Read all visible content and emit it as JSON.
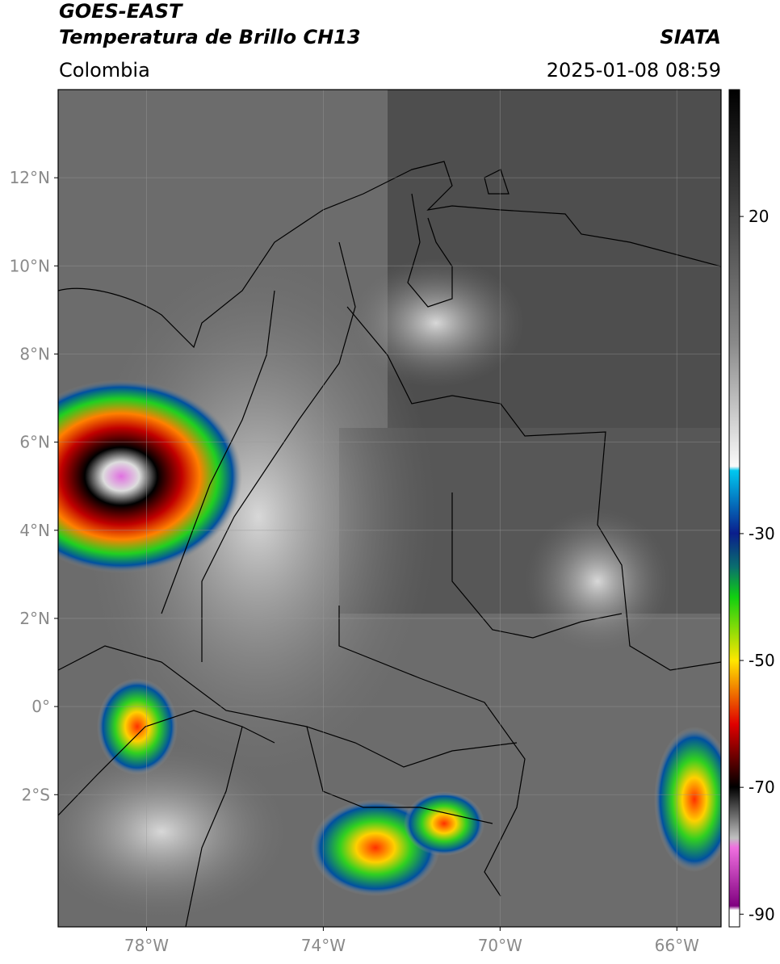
{
  "header": {
    "title": "GOES-EAST",
    "subtitle": "Temperatura de Brillo CH13",
    "source": "SIATA",
    "region": "Colombia",
    "datetime": "2025-01-08 08:59"
  },
  "map": {
    "xlim": [
      -80,
      -65
    ],
    "ylim": [
      -5,
      14
    ],
    "xticks": [
      {
        "value": -78,
        "label": "78°W"
      },
      {
        "value": -74,
        "label": "74°W"
      },
      {
        "value": -70,
        "label": "70°W"
      },
      {
        "value": -66,
        "label": "66°W"
      }
    ],
    "yticks": [
      {
        "value": 12,
        "label": "12°N"
      },
      {
        "value": 10,
        "label": "10°N"
      },
      {
        "value": 8,
        "label": "8°N"
      },
      {
        "value": 6,
        "label": "6°N"
      },
      {
        "value": 4,
        "label": "4°N"
      },
      {
        "value": 2,
        "label": "2°N"
      },
      {
        "value": 0,
        "label": "0°"
      },
      {
        "value": -2,
        "label": "2°S"
      }
    ]
  },
  "colorbar": {
    "lim": [
      -92,
      40
    ],
    "ticks": [
      20,
      -30,
      -50,
      -70,
      -90
    ]
  }
}
